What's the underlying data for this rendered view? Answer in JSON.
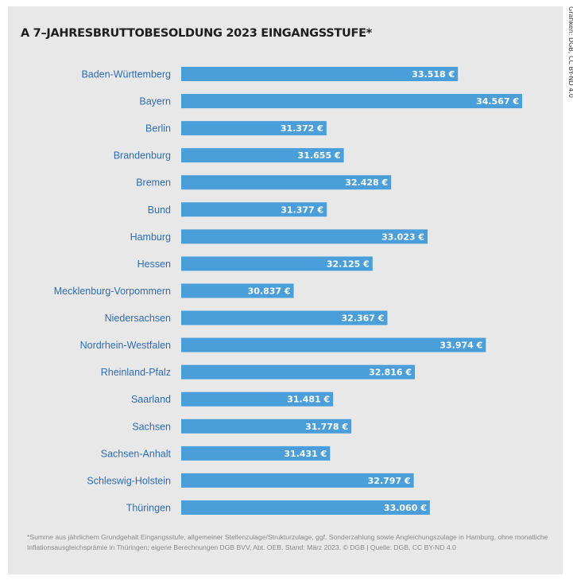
{
  "credit": "Grafiken: DGB, CC BY-ND 4.0",
  "footnote": "*Summe aus jährlichem Grundgehalt Eingangsstufe, allgemeiner Stellenzulage/Strukturzulage, ggf. Sonderzahlung sowie Angleichungszulage in Hamburg, ohne monatliche Inflationsausgleichsprämie in Thüringen; eigene Berechnungen DGB BVV, Abt. OEB. Stand: März 2023. © DGB | Quelle: DGB, CC BY-ND 4.0",
  "colors": {
    "bar": "#4a9fdb",
    "value_text": "#ffffff",
    "category_text": "#2e6db4",
    "background": "#e8e8e8"
  },
  "chart_data": {
    "type": "bar",
    "orientation": "horizontal",
    "title": "A 7–JAHRESBRUTTOBESOLDUNG 2023 EINGANGSSTUFE*",
    "xlabel": "",
    "ylabel": "",
    "grid": false,
    "legend": "none",
    "xlim": [
      29000,
      34567
    ],
    "categories": [
      "Baden-Württemberg",
      "Bayern",
      "Berlin",
      "Brandenburg",
      "Bremen",
      "Bund",
      "Hamburg",
      "Hessen",
      "Mecklenburg-Vorpommern",
      "Niedersachsen",
      "Nordrhein-Westfalen",
      "Rheinland-Pfalz",
      "Saarland",
      "Sachsen",
      "Sachsen-Anhalt",
      "Schleswig-Holstein",
      "Thüringen"
    ],
    "values": [
      33518,
      34567,
      31372,
      31655,
      32428,
      31377,
      33023,
      32125,
      30837,
      32367,
      33974,
      32816,
      31481,
      31778,
      31431,
      32797,
      33060
    ],
    "value_labels": [
      "33.518 €",
      "34.567 €",
      "31.372 €",
      "31.655 €",
      "32.428 €",
      "31.377 €",
      "33.023 €",
      "32.125 €",
      "30.837 €",
      "32.367 €",
      "33.974 €",
      "32.816 €",
      "31.481 €",
      "31.778 €",
      "31.431 €",
      "32.797 €",
      "33.060 €"
    ]
  }
}
